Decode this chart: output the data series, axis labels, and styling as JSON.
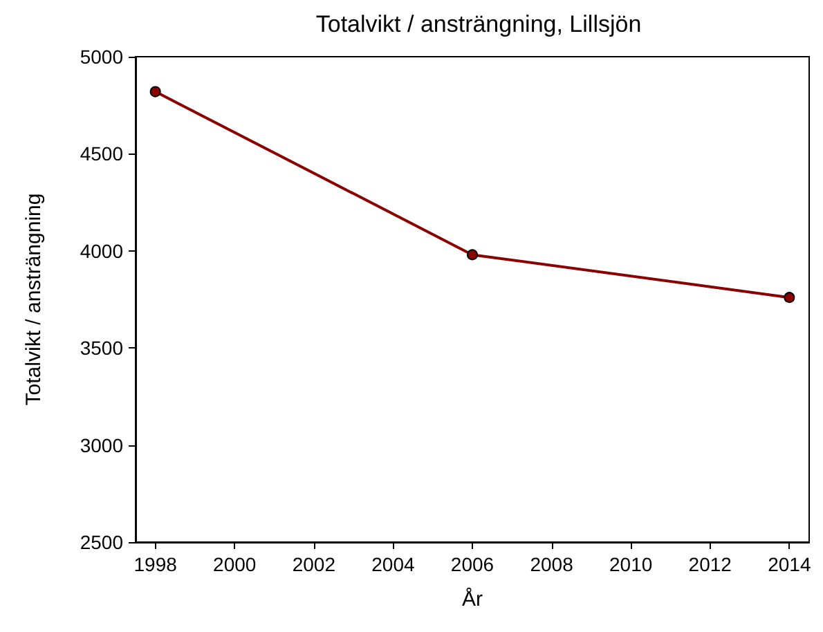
{
  "chart_data": {
    "type": "line",
    "title": "Totalvikt / ansträngning, Lillsjön",
    "xlabel": "År",
    "ylabel": "Totalvikt / ansträngning",
    "x": [
      1998,
      2006,
      2014
    ],
    "series": [
      {
        "color": "#8b0000",
        "values": [
          4820,
          3980,
          3760
        ]
      }
    ],
    "xlim": [
      1997.5,
      2014.5
    ],
    "xticks": [
      1998,
      2000,
      2002,
      2004,
      2006,
      2008,
      2010,
      2012,
      2014
    ],
    "ylim": [
      2500,
      5000
    ],
    "yticks": [
      2500,
      3000,
      3500,
      4000,
      4500,
      5000
    ],
    "grid": false,
    "marker": "circle",
    "line_style": "solid"
  }
}
